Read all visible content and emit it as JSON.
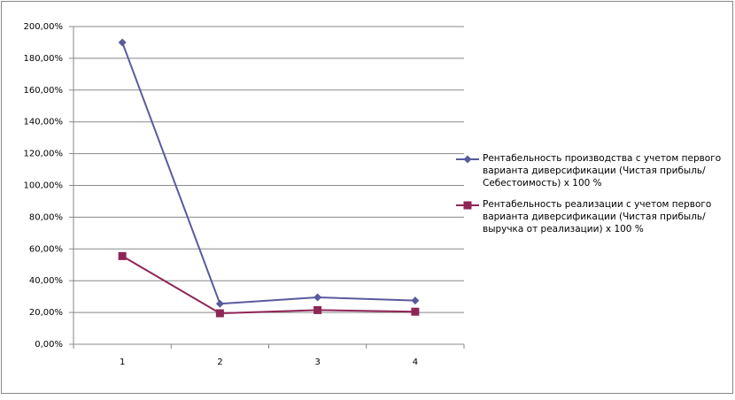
{
  "chart_data": {
    "type": "line",
    "categories": [
      "1",
      "2",
      "3",
      "4"
    ],
    "series": [
      {
        "name": "Рентабельность производства с учетом первого варианта диверсификации (Чистая прибыль/Себестоимость) х 100 %",
        "color": "#5a5a9e",
        "marker": "diamond",
        "values": [
          190,
          25.5,
          29.5,
          27.5
        ]
      },
      {
        "name": "Рентабельность реализации с учетом первого варианта диверсификации (Чистая прибыль/выручка от реализации) х 100 %",
        "color": "#8e2656",
        "marker": "square",
        "values": [
          55.5,
          19.5,
          21.5,
          20.5
        ]
      }
    ],
    "ylim": [
      0,
      200
    ],
    "yticks": [
      {
        "value": 0,
        "label": "0,00%"
      },
      {
        "value": 20,
        "label": "20,00%"
      },
      {
        "value": 40,
        "label": "40,00%"
      },
      {
        "value": 60,
        "label": "60,00%"
      },
      {
        "value": 80,
        "label": "80,00%"
      },
      {
        "value": 100,
        "label": "100,00%"
      },
      {
        "value": 120,
        "label": "120,00%"
      },
      {
        "value": 140,
        "label": "140,00%"
      },
      {
        "value": 160,
        "label": "160,00%"
      },
      {
        "value": 180,
        "label": "180,00%"
      },
      {
        "value": 200,
        "label": "200,00%"
      }
    ],
    "grid": true,
    "legend": "right"
  }
}
